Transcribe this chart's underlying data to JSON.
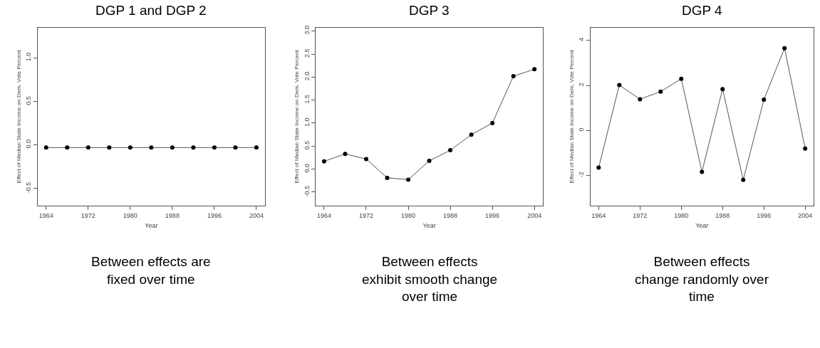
{
  "chart_data": [
    {
      "type": "line",
      "title": "DGP 1 and DGP 2",
      "xlabel": "Year",
      "ylabel": "Effect of Median State Income on Dem. Vote Percent",
      "x": [
        1964,
        1968,
        1972,
        1976,
        1980,
        1984,
        1988,
        1992,
        1996,
        2000,
        2004
      ],
      "series": [
        {
          "color": "#000000",
          "values": [
            -0.03,
            -0.03,
            -0.03,
            -0.03,
            -0.03,
            -0.03,
            -0.03,
            -0.03,
            -0.03,
            -0.03,
            -0.03
          ]
        }
      ],
      "xlim": [
        1962.4,
        2005.6
      ],
      "xticks": [
        1964,
        1972,
        1980,
        1988,
        1996,
        2004
      ],
      "ylim": [
        -0.7,
        1.35
      ],
      "yticks": [
        {
          "value": -0.5,
          "label": "-0.5"
        },
        {
          "value": 0,
          "label": "0.0"
        },
        0.5,
        {
          "value": 1,
          "label": "1.0"
        }
      ],
      "marker": "circle",
      "line_style": "solid",
      "annotations": [
        "Between effects are\nfixed over time"
      ]
    },
    {
      "type": "line",
      "title": "DGP 3",
      "xlabel": "Year",
      "ylabel": "Effect of Median State Income on Dem. Vote Percent",
      "x": [
        1964,
        1968,
        1972,
        1976,
        1980,
        1984,
        1988,
        1992,
        1996,
        2000,
        2004
      ],
      "series": [
        {
          "color": "#000000",
          "values": [
            0.17,
            0.33,
            0.22,
            -0.19,
            -0.23,
            0.18,
            0.41,
            0.75,
            1.0,
            2.02,
            2.17
          ]
        }
      ],
      "xlim": [
        1962.4,
        2005.6
      ],
      "xticks": [
        1964,
        1972,
        1980,
        1988,
        1996,
        2004
      ],
      "ylim": [
        -0.8,
        3.08
      ],
      "yticks": [
        {
          "value": -0.5,
          "label": "-0.5"
        },
        {
          "value": 0,
          "label": "0.0"
        },
        0.5,
        {
          "value": 1,
          "label": "1.0"
        },
        1.5,
        {
          "value": 2,
          "label": "2.0"
        },
        2.5,
        {
          "value": 3,
          "label": "3.0"
        }
      ],
      "marker": "circle",
      "line_style": "solid",
      "annotations": [
        "Between effects\nexhibit smooth change\nover time"
      ]
    },
    {
      "type": "line",
      "title": "DGP 4",
      "xlabel": "Year",
      "ylabel": "Effect of Median State Income on Dem. Vote Percent",
      "x": [
        1964,
        1968,
        1972,
        1976,
        1980,
        1984,
        1988,
        1992,
        1996,
        2000,
        2004
      ],
      "series": [
        {
          "color": "#000000",
          "values": [
            -1.65,
            2.02,
            1.39,
            1.73,
            2.3,
            -1.84,
            1.84,
            -2.19,
            1.37,
            3.66,
            -0.8
          ]
        }
      ],
      "xlim": [
        1962.4,
        2005.6
      ],
      "xticks": [
        1964,
        1972,
        1980,
        1988,
        1996,
        2004
      ],
      "ylim": [
        -3.35,
        4.58
      ],
      "yticks": [
        -2,
        0,
        2,
        4
      ],
      "marker": "circle",
      "line_style": "solid",
      "annotations": [
        "Between effects\nchange randomly over\ntime"
      ]
    }
  ]
}
